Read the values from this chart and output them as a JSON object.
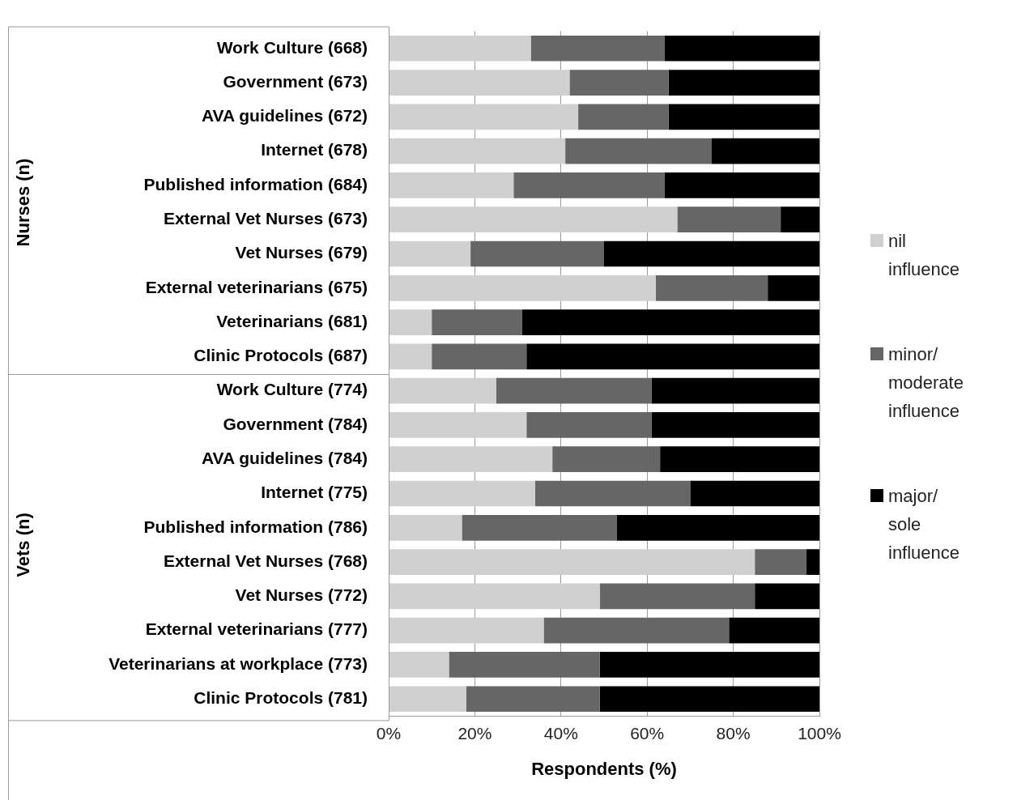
{
  "chart_data": {
    "type": "bar",
    "orientation": "horizontal",
    "stacked": true,
    "categories": [
      "Work Culture (668)",
      "Government (673)",
      "AVA guidelines (672)",
      "Internet (678)",
      "Published information (684)",
      "External Vet Nurses (673)",
      "Vet Nurses (679)",
      "External veterinarians (675)",
      "Veterinarians (681)",
      "Clinic Protocols (687)",
      "Work Culture (774)",
      "Government (784)",
      "AVA guidelines (784)",
      "Internet (775)",
      "Published information (786)",
      "External Vet Nurses (768)",
      "Vet Nurses (772)",
      "External veterinarians (777)",
      "Veterinarians at workplace (773)",
      "Clinic Protocols (781)"
    ],
    "series": [
      {
        "name": "nil influence",
        "color": "#d0d0d0",
        "values": [
          33,
          42,
          44,
          41,
          29,
          67,
          19,
          62,
          10,
          10,
          25,
          32,
          38,
          34,
          17,
          85,
          49,
          36,
          14,
          18
        ]
      },
      {
        "name": "minor/ moderate influence",
        "color": "#666666",
        "values": [
          31,
          23,
          21,
          34,
          35,
          24,
          31,
          26,
          21,
          22,
          36,
          29,
          25,
          36,
          36,
          12,
          36,
          43,
          35,
          31
        ]
      },
      {
        "name": "major/ sole influence",
        "color": "#000000",
        "values": [
          36,
          35,
          35,
          25,
          36,
          9,
          50,
          12,
          69,
          68,
          39,
          39,
          37,
          30,
          47,
          3,
          15,
          21,
          51,
          51
        ]
      }
    ],
    "xlim": [
      0,
      100
    ],
    "xticks": [
      {
        "value": 0,
        "label": "0%"
      },
      {
        "value": 20,
        "label": "20%"
      },
      {
        "value": 40,
        "label": "40%"
      },
      {
        "value": 60,
        "label": "60%"
      },
      {
        "value": 80,
        "label": "80%"
      },
      {
        "value": 100,
        "label": "100%"
      }
    ],
    "xlabel": "Respondents (%)",
    "annotations": [
      "Nurses (n)",
      "Vets (n)"
    ],
    "grid": "x",
    "legend": "right"
  }
}
